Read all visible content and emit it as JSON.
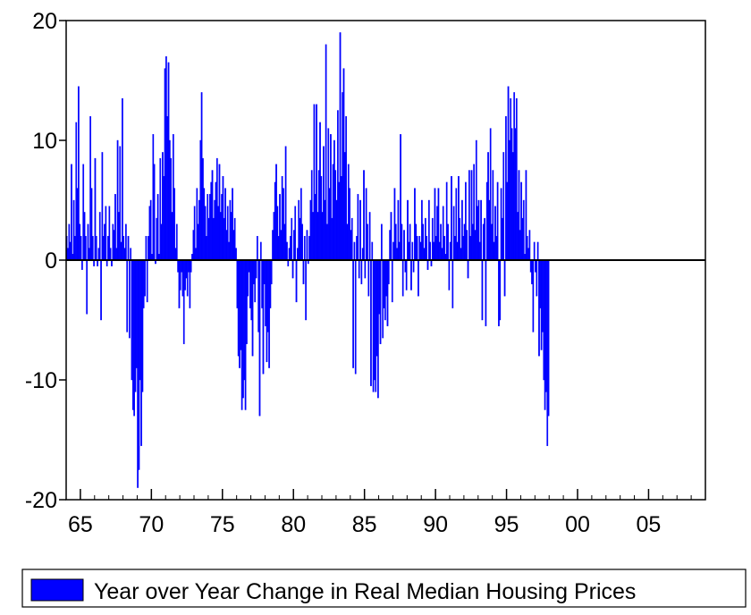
{
  "chart_data": {
    "type": "bar",
    "title": "",
    "xlabel": "",
    "ylabel": "",
    "x_range": [
      1964,
      1965,
      1966,
      1967,
      1968,
      1969,
      1970,
      1971,
      1972,
      1973,
      1974,
      1975,
      1976,
      1977,
      1978,
      1979,
      1980,
      1981,
      1982,
      1983,
      1984,
      1985,
      1986,
      1987,
      1988,
      1989,
      1990,
      1991,
      1992,
      1993,
      1994,
      1995,
      1996,
      1997,
      1998,
      1999,
      2000,
      2001,
      2002,
      2003,
      2004,
      2005,
      2006,
      2007,
      2008
    ],
    "xlim": [
      1964.0,
      2009.0
    ],
    "ylim": [
      -20,
      20
    ],
    "yticks": [
      -20,
      -10,
      0,
      10,
      20
    ],
    "ytick_labels": [
      "-20",
      "-10",
      "0",
      "10",
      "20"
    ],
    "xticks": [
      1965,
      1970,
      1975,
      1980,
      1985,
      1990,
      1995,
      2000,
      2005
    ],
    "xtick_labels": [
      "65",
      "70",
      "75",
      "80",
      "85",
      "90",
      "95",
      "00",
      "05"
    ],
    "legend_position": "bottom",
    "bar_color": "#0000ff",
    "series": [
      {
        "name": "Year over Year Change in Real Median Housing Prices",
        "frequency": "monthly",
        "start": "1964-01",
        "values": [
          2.0,
          1.0,
          3.0,
          1.5,
          8.0,
          0.5,
          5.0,
          2.0,
          11.5,
          6.0,
          14.5,
          3.0,
          2.0,
          -0.8,
          8.0,
          4.0,
          2.0,
          -4.5,
          3.0,
          1.0,
          12.0,
          6.0,
          2.0,
          -0.5,
          8.5,
          2.0,
          -0.5,
          1.0,
          4.0,
          -5.0,
          9.0,
          2.0,
          3.0,
          4.5,
          -0.5,
          2.0,
          4.5,
          1.0,
          -0.5,
          3.0,
          2.5,
          5.5,
          1.0,
          10.0,
          4.0,
          9.5,
          1.5,
          13.5,
          2.0,
          1.0,
          3.0,
          -6.0,
          2.0,
          -6.5,
          1.0,
          -10.0,
          -12.5,
          -13.0,
          -11.0,
          -9.0,
          -19.0,
          -17.5,
          -10.0,
          -15.5,
          -11.0,
          -4.0,
          -3.0,
          2.0,
          -3.5,
          2.0,
          4.5,
          5.0,
          0.5,
          10.5,
          8.0,
          -0.3,
          3.5,
          5.5,
          0.5,
          8.5,
          3.0,
          9.0,
          7.0,
          16.0,
          17.0,
          12.0,
          16.5,
          10.0,
          8.5,
          4.0,
          10.5,
          6.0,
          1.0,
          3.0,
          -1.0,
          -4.0,
          -2.5,
          -1.0,
          -3.0,
          -7.0,
          -2.5,
          -1.5,
          -3.0,
          -1.0,
          -4.0,
          -1.0,
          0.5,
          2.5,
          4.5,
          1.0,
          6.0,
          3.0,
          5.0,
          10.0,
          14.0,
          8.5,
          6.0,
          4.5,
          2.0,
          5.5,
          3.5,
          5.5,
          6.5,
          7.5,
          3.5,
          5.0,
          6.5,
          8.5,
          4.5,
          8.0,
          4.0,
          5.5,
          7.0,
          3.5,
          6.0,
          2.5,
          4.5,
          1.5,
          5.0,
          4.0,
          6.0,
          2.5,
          3.5,
          1.0,
          -4.0,
          -8.0,
          -9.0,
          -7.5,
          -12.5,
          -11.5,
          -10.0,
          -12.5,
          -7.0,
          -3.0,
          -1.0,
          -4.0,
          -5.0,
          -8.0,
          -2.0,
          -3.5,
          -1.5,
          2.0,
          -6.0,
          -13.0,
          1.5,
          -4.0,
          -9.5,
          -2.0,
          -5.5,
          -8.5,
          -6.0,
          -9.0,
          -4.0,
          -2.0,
          2.5,
          4.0,
          6.5,
          8.0,
          4.5,
          2.0,
          5.5,
          2.5,
          7.0,
          6.0,
          3.0,
          9.5,
          1.5,
          -0.5,
          1.0,
          2.0,
          3.5,
          -1.5,
          2.5,
          4.5,
          -3.5,
          1.0,
          5.0,
          3.5,
          6.0,
          3.0,
          -2.0,
          2.0,
          -5.0,
          2.5,
          -0.3,
          2.0,
          5.0,
          7.5,
          4.0,
          13.0,
          5.5,
          13.0,
          4.0,
          7.5,
          11.5,
          7.0,
          4.0,
          9.5,
          5.0,
          18.0,
          3.0,
          11.0,
          6.0,
          10.5,
          3.5,
          8.0,
          10.0,
          7.5,
          5.0,
          12.5,
          6.5,
          19.0,
          7.0,
          14.0,
          16.0,
          9.0,
          12.0,
          3.0,
          8.0,
          6.0,
          2.5,
          3.5,
          -9.0,
          1.5,
          -9.5,
          2.0,
          5.5,
          -1.5,
          5.0,
          -2.0,
          1.0,
          7.5,
          -1.5,
          6.0,
          3.0,
          -3.0,
          4.0,
          -10.5,
          1.5,
          -11.0,
          -10.0,
          -11.0,
          -8.0,
          -11.5,
          -4.5,
          -7.0,
          3.0,
          -6.5,
          -4.0,
          -5.0,
          -3.0,
          -5.5,
          -2.0,
          2.5,
          4.0,
          -3.5,
          1.5,
          6.0,
          3.0,
          1.0,
          5.0,
          1.5,
          10.5,
          3.0,
          -3.0,
          2.5,
          -1.0,
          -2.5,
          5.0,
          1.5,
          3.0,
          -2.5,
          1.5,
          -1.0,
          6.0,
          3.0,
          2.0,
          -3.0,
          2.0,
          1.5,
          5.0,
          3.0,
          1.0,
          3.5,
          2.0,
          -0.8,
          5.0,
          1.5,
          -0.5,
          3.5,
          1.5,
          6.0,
          2.0,
          4.5,
          6.0,
          1.5,
          3.0,
          1.0,
          4.5,
          2.0,
          0.5,
          6.5,
          3.0,
          -2.5,
          1.5,
          7.0,
          -4.0,
          4.5,
          2.0,
          6.0,
          1.5,
          7.0,
          3.5,
          1.0,
          5.0,
          2.0,
          3.0,
          6.5,
          2.5,
          -1.5,
          7.5,
          2.0,
          7.5,
          3.0,
          8.0,
          2.5,
          10.0,
          4.5,
          5.0,
          1.5,
          5.0,
          -5.0,
          3.0,
          3.5,
          -5.5,
          6.5,
          9.0,
          5.0,
          11.0,
          3.0,
          7.5,
          1.5,
          4.5,
          2.0,
          6.5,
          -5.5,
          -5.0,
          6.0,
          3.5,
          9.0,
          -3.0,
          12.0,
          6.5,
          14.5,
          10.0,
          13.5,
          11.0,
          9.0,
          14.0,
          11.0,
          13.5,
          4.0,
          7.5,
          2.5,
          6.5,
          3.5,
          5.0,
          0.5,
          7.5,
          2.0,
          1.0,
          2.5,
          -1.0,
          -2.0,
          -6.0,
          1.5,
          -1.0,
          -3.0,
          1.5,
          -8.0,
          -4.0,
          -7.5,
          -6.0,
          -10.0,
          -12.5,
          -11.0,
          -15.5,
          -13.0
        ]
      }
    ]
  }
}
